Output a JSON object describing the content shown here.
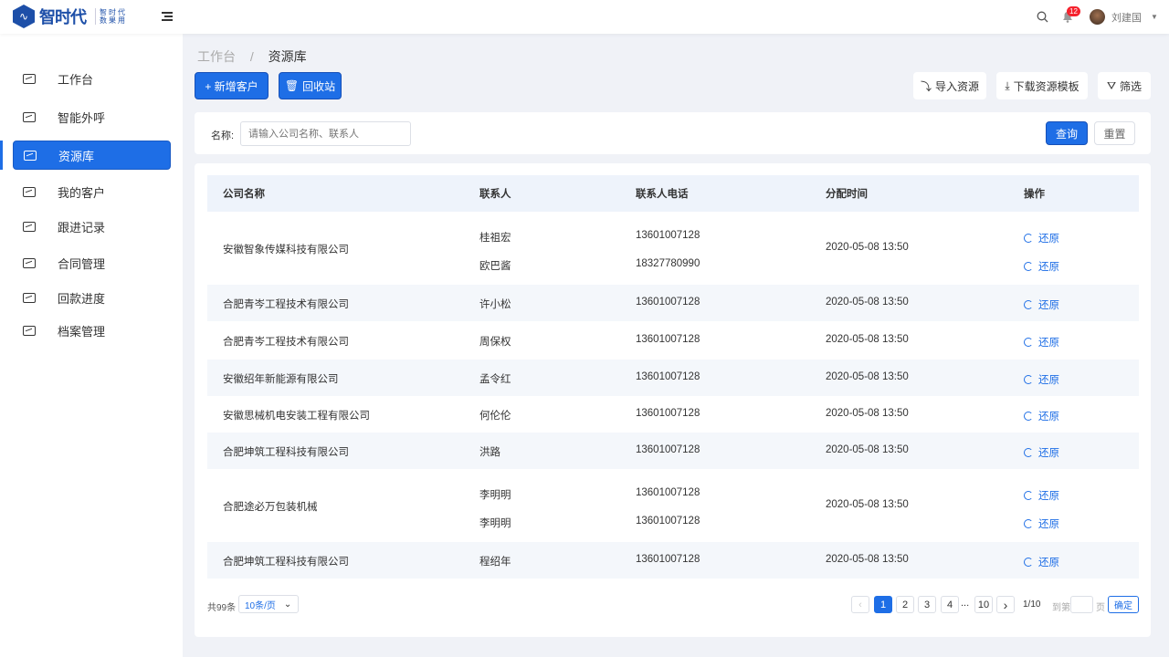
{
  "header": {
    "logo_text": "智时代",
    "logo_sub": "智时代 数果用",
    "notifications": "12",
    "user": "刘建国"
  },
  "sidebar": {
    "items": [
      {
        "label": "工作台"
      },
      {
        "label": "智能外呼"
      },
      {
        "label": "资源库",
        "active": true
      },
      {
        "label": "我的客户"
      },
      {
        "label": "跟进记录"
      },
      {
        "label": "合同管理"
      },
      {
        "label": "回款进度"
      },
      {
        "label": "档案管理"
      }
    ]
  },
  "breadcrumb": {
    "parent": "工作台",
    "sep": "/",
    "current": "资源库"
  },
  "toolbar": {
    "add": "+ 新增客户",
    "recycle": "回收站",
    "import": "导入资源",
    "download": "下载资源模板",
    "filter": "筛选"
  },
  "search": {
    "label": "名称:",
    "placeholder": "请输入公司名称、联系人",
    "query": "查询",
    "reset": "重置"
  },
  "table": {
    "headers": [
      "公司名称",
      "联系人",
      "联系人电话",
      "分配时间",
      "操作"
    ],
    "action": "还原",
    "rows": [
      {
        "company": "安徽智象传媒科技有限公司",
        "contacts": [
          {
            "name": "桂祖宏",
            "phone": "13601007128"
          },
          {
            "name": "欧巴酱",
            "phone": "18327780990"
          }
        ],
        "time": "2020-05-08 13:50"
      },
      {
        "company": "合肥青岑工程技术有限公司",
        "contacts": [
          {
            "name": "许小松",
            "phone": "13601007128"
          }
        ],
        "time": "2020-05-08 13:50"
      },
      {
        "company": "合肥青岑工程技术有限公司",
        "contacts": [
          {
            "name": "周保权",
            "phone": "13601007128"
          }
        ],
        "time": "2020-05-08 13:50"
      },
      {
        "company": "安徽绍年新能源有限公司",
        "contacts": [
          {
            "name": "孟令红",
            "phone": "13601007128"
          }
        ],
        "time": "2020-05-08 13:50"
      },
      {
        "company": "安徽思械机电安装工程有限公司",
        "contacts": [
          {
            "name": "何伦伦",
            "phone": "13601007128"
          }
        ],
        "time": "2020-05-08 13:50"
      },
      {
        "company": "合肥坤筑工程科技有限公司",
        "contacts": [
          {
            "name": "洪路",
            "phone": "13601007128"
          }
        ],
        "time": "2020-05-08 13:50"
      },
      {
        "company": "合肥途必万包装机械",
        "contacts": [
          {
            "name": "李明明",
            "phone": "13601007128"
          },
          {
            "name": "李明明",
            "phone": "13601007128"
          }
        ],
        "time": "2020-05-08 13:50"
      },
      {
        "company": "合肥坤筑工程科技有限公司",
        "contacts": [
          {
            "name": "程绍年",
            "phone": "13601007128"
          }
        ],
        "time": "2020-05-08 13:50"
      }
    ]
  },
  "pagination": {
    "total": "共99条",
    "page_size": "10条/页",
    "pages": [
      "1",
      "2",
      "3",
      "4",
      "...",
      "10"
    ],
    "current_page": 1,
    "indicator": "1/10",
    "goto_label": "到第",
    "page_unit": "页",
    "confirm": "确定"
  }
}
